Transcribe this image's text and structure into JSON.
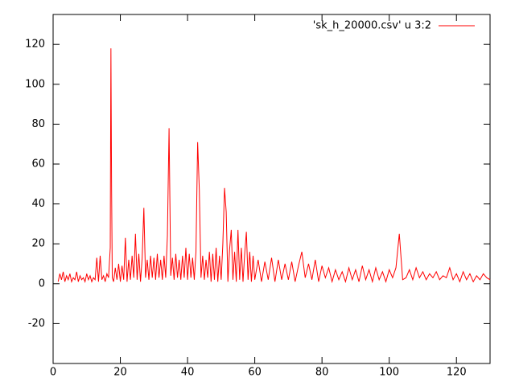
{
  "chart_data": {
    "type": "line",
    "series": [
      {
        "name": "'sk_h_20000.csv' u 3:2",
        "color": "#ff0000",
        "x": [
          1.5,
          2,
          2.5,
          3,
          3.5,
          4,
          4.5,
          5,
          5.5,
          6,
          6.5,
          7,
          7.5,
          8,
          8.5,
          9,
          9.5,
          10,
          10.5,
          11,
          11.5,
          12,
          12.5,
          13,
          13.5,
          14,
          14.5,
          15,
          15.5,
          16,
          16.5,
          17,
          17.2,
          17.4,
          17.6,
          18,
          18.5,
          19,
          19.5,
          20,
          20.5,
          21,
          21.5,
          22,
          22.5,
          23,
          23.5,
          24,
          24.5,
          25,
          25.5,
          26,
          26.5,
          27,
          27.5,
          28,
          28.5,
          29,
          29.5,
          30,
          30.5,
          31,
          31.5,
          32,
          32.5,
          33,
          33.5,
          34,
          34.5,
          35,
          35.5,
          36,
          36.5,
          37,
          37.5,
          38,
          38.5,
          39,
          39.5,
          40,
          40.5,
          41,
          41.5,
          42,
          42.5,
          43,
          43.5,
          44,
          44.5,
          45,
          45.5,
          46,
          46.5,
          47,
          47.5,
          48,
          48.5,
          49,
          49.5,
          50,
          50.5,
          51,
          51.5,
          52,
          52.5,
          53,
          53.5,
          54,
          54.5,
          55,
          55.5,
          56,
          56.5,
          57,
          57.5,
          58,
          58.5,
          59,
          59.5,
          60,
          61,
          62,
          63,
          64,
          65,
          66,
          67,
          68,
          69,
          70,
          71,
          72,
          73,
          74,
          75,
          76,
          77,
          78,
          79,
          80,
          81,
          82,
          83,
          84,
          85,
          86,
          87,
          88,
          89,
          90,
          91,
          92,
          93,
          94,
          95,
          96,
          97,
          98,
          99,
          100,
          101,
          102,
          103,
          104,
          105,
          106,
          107,
          108,
          109,
          110,
          111,
          112,
          113,
          114,
          115,
          116,
          117,
          118,
          119,
          120,
          121,
          122,
          123,
          124,
          125,
          126,
          127,
          128,
          129,
          130
        ],
        "values": [
          1,
          5,
          2,
          6,
          1,
          4,
          2,
          5,
          1,
          3,
          2,
          6,
          1,
          4,
          2,
          3,
          1,
          5,
          2,
          4,
          1,
          3,
          2,
          13,
          1,
          14,
          2,
          4,
          1,
          5,
          3,
          18,
          118,
          47,
          3,
          1,
          8,
          2,
          10,
          1,
          9,
          2,
          23,
          1,
          12,
          2,
          14,
          3,
          25,
          2,
          15,
          1,
          13,
          38,
          3,
          12,
          2,
          14,
          3,
          13,
          2,
          15,
          3,
          12,
          2,
          14,
          3,
          24,
          78,
          4,
          13,
          2,
          15,
          3,
          12,
          2,
          14,
          3,
          18,
          2,
          15,
          3,
          13,
          2,
          16,
          71,
          47,
          3,
          14,
          2,
          12,
          3,
          16,
          1,
          15,
          2,
          18,
          1,
          14,
          2,
          20,
          48,
          36,
          1,
          17,
          27,
          2,
          16,
          1,
          27,
          2,
          18,
          1,
          15,
          26,
          2,
          16,
          1,
          14,
          2,
          12,
          1,
          11,
          2,
          13,
          1,
          12,
          2,
          10,
          2,
          11,
          1,
          9,
          16,
          3,
          10,
          2,
          12,
          1,
          9,
          3,
          8,
          1,
          7,
          2,
          6,
          1,
          8,
          2,
          7,
          1,
          9,
          2,
          7,
          1,
          8,
          2,
          6,
          1,
          7,
          3,
          8,
          25,
          2,
          3,
          7,
          2,
          8,
          3,
          6,
          2,
          5,
          3,
          6,
          2,
          4,
          3,
          8,
          2,
          5,
          1,
          6,
          2,
          5,
          1,
          4,
          2,
          5,
          3,
          2
        ]
      }
    ],
    "xlim": [
      0,
      130
    ],
    "xticks": [
      0,
      20,
      40,
      60,
      80,
      100,
      120
    ],
    "ylim": [
      -40,
      135
    ],
    "yticks": [
      -20,
      0,
      20,
      40,
      60,
      80,
      100,
      120
    ],
    "legend": "top-right"
  }
}
